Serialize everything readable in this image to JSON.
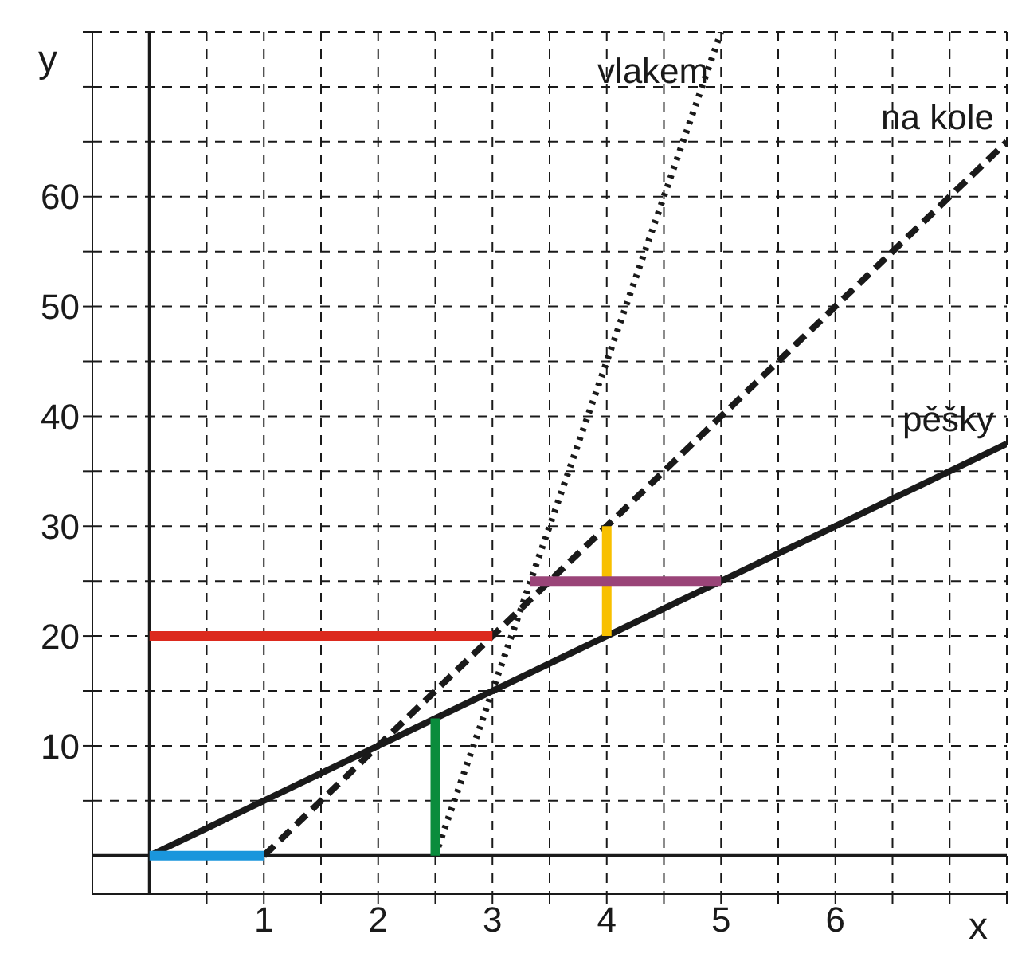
{
  "chart_data": {
    "type": "line",
    "xlabel": "x",
    "ylabel": "y",
    "xlim": [
      -0.5,
      7.5
    ],
    "ylim": [
      -3.5,
      75
    ],
    "xticks": [
      {
        "value": 0.5,
        "label": null
      },
      1,
      {
        "value": 1.5,
        "label": null
      },
      2,
      {
        "value": 2.5,
        "label": null
      },
      3,
      {
        "value": 3.5,
        "label": null
      },
      4,
      {
        "value": 4.5,
        "label": null
      },
      5,
      {
        "value": 5.5,
        "label": null
      },
      6,
      {
        "value": 6.5,
        "label": null
      },
      {
        "value": 7,
        "label": null
      },
      {
        "value": 7.5,
        "label": null
      }
    ],
    "yticks": [
      {
        "value": 5,
        "label": null
      },
      10,
      {
        "value": 15,
        "label": null
      },
      20,
      {
        "value": 25,
        "label": null
      },
      30,
      {
        "value": 35,
        "label": null
      },
      40,
      {
        "value": 45,
        "label": null
      },
      50,
      {
        "value": 55,
        "label": null
      },
      60,
      {
        "value": 65,
        "label": null
      },
      {
        "value": 70,
        "label": null
      },
      {
        "value": 75,
        "label": null
      }
    ],
    "grid": true,
    "legend": false,
    "marker": "none",
    "series": [
      {
        "name": "pěšky",
        "color": "#1a1a1a",
        "line_style": "solid",
        "x": [
          0,
          7.5
        ],
        "values": [
          0,
          37.5
        ]
      },
      {
        "name": "na kole",
        "color": "#1a1a1a",
        "line_style": "dashed",
        "x": [
          1,
          7.5
        ],
        "values": [
          0,
          65
        ]
      },
      {
        "name": "vlakem",
        "color": "#1a1a1a",
        "line_style": "dotted",
        "x": [
          2.5,
          5
        ],
        "values": [
          0,
          75
        ]
      },
      {
        "color": "#1a96dc",
        "line_style": "solid",
        "x": [
          0,
          1
        ],
        "values": [
          0,
          0
        ]
      },
      {
        "color": "#dc2a1e",
        "line_style": "solid",
        "x": [
          0,
          3
        ],
        "values": [
          20,
          20
        ]
      },
      {
        "color": "#0a8c3c",
        "line_style": "solid",
        "x": [
          2.5,
          2.5
        ],
        "values": [
          0,
          12.5
        ]
      },
      {
        "color": "#f8c000",
        "line_style": "solid",
        "x": [
          4,
          4
        ],
        "values": [
          20,
          30
        ]
      },
      {
        "color": "#9a4478",
        "line_style": "solid",
        "x": [
          3.33,
          5
        ],
        "values": [
          25,
          25
        ]
      }
    ]
  }
}
